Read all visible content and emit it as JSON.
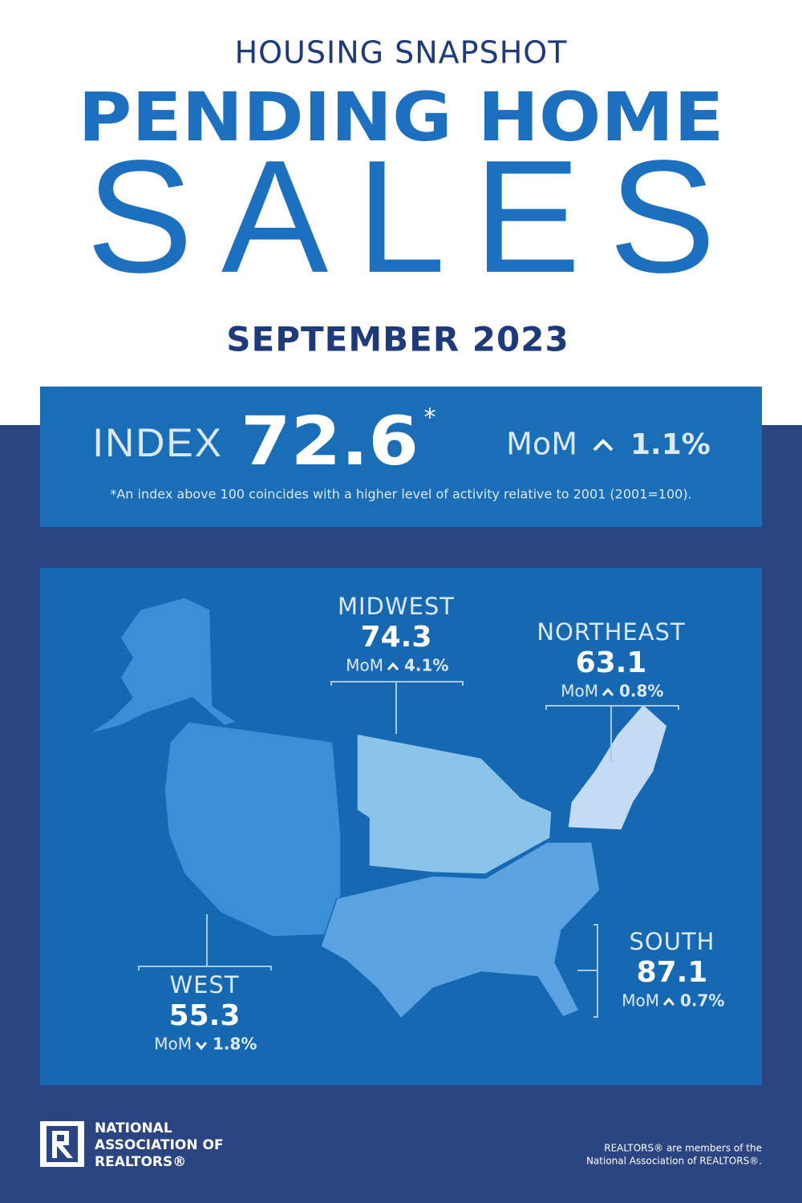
{
  "header": {
    "kicker": "HOUSING SNAPSHOT",
    "title_line1": "PENDING HOME",
    "title_line2": "SALES",
    "period": "SEPTEMBER 2023"
  },
  "index": {
    "label": "INDEX",
    "value": "72.6",
    "asterisk": "*",
    "mom_label": "MoM",
    "mom_value": "1.1%",
    "footnote": "*An index above 100 coincides with a higher level of activity relative to 2001 (2001=100)."
  },
  "regions": [
    {
      "name": "MIDWEST",
      "value": "74.3",
      "mom_label": "MoM",
      "mom_value": "4.1%"
    },
    {
      "name": "NORTHEAST",
      "value": "63.1",
      "mom_label": "MoM",
      "mom_value": "0.8%"
    },
    {
      "name": "SOUTH",
      "value": "87.1",
      "mom_label": "MoM",
      "mom_value": "0.7%"
    },
    {
      "name": "WEST",
      "value": "55.3",
      "mom_label": "MoM",
      "mom_value": "1.8%"
    }
  ],
  "footer": {
    "logo_lines": [
      "NATIONAL",
      "ASSOCIATION OF",
      "REALTORS®"
    ],
    "disclaimer_lines": [
      "REALTORS® are members of the",
      "National Association of REALTORS®."
    ]
  }
}
